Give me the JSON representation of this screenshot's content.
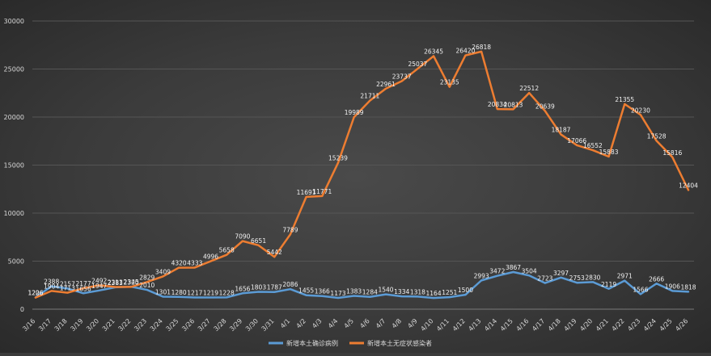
{
  "chart_data": {
    "type": "line",
    "title": "",
    "xlabel": "",
    "ylabel": "",
    "ylim": [
      0,
      30000
    ],
    "yticks": [
      0,
      5000,
      10000,
      15000,
      20000,
      25000,
      30000
    ],
    "grid": true,
    "legend_position": "bottom",
    "categories": [
      "3/16",
      "3/17",
      "3/18",
      "3/19",
      "3/20",
      "3/21",
      "3/22",
      "3/23",
      "3/24",
      "3/25",
      "3/26",
      "3/27",
      "3/28",
      "3/29",
      "3/30",
      "3/31",
      "4/1",
      "4/2",
      "4/3",
      "4/4",
      "4/5",
      "4/6",
      "4/7",
      "4/8",
      "4/9",
      "4/10",
      "4/11",
      "4/12",
      "4/13",
      "4/14",
      "4/15",
      "4/16",
      "4/17",
      "4/18",
      "4/19",
      "4/20",
      "4/21",
      "4/22",
      "4/23",
      "4/24",
      "4/25",
      "4/26"
    ],
    "series": [
      {
        "name": "新增本土确诊病例",
        "color": "#5b9bd5",
        "values": [
          1226,
          2388,
          2157,
          1656,
          1947,
          2281,
          2345,
          2010,
          1301,
          1280,
          1217,
          1219,
          1228,
          1656,
          1803,
          1787,
          2086,
          1455,
          1366,
          1173,
          1383,
          1284,
          1540,
          1334,
          1318,
          1164,
          1251,
          1500,
          2993,
          3472,
          3867,
          3504,
          2723,
          3297,
          2753,
          2830,
          2119,
          2971,
          1566,
          2666,
          1906,
          1818
        ]
      },
      {
        "name": "新增本土无症状感染者",
        "color": "#ed7d31",
        "values": [
          1206,
          1904,
          1713,
          2177,
          2492,
          2313,
          2320,
          2829,
          3409,
          4320,
          4333,
          4996,
          5658,
          7090,
          6651,
          5442,
          7789,
          11691,
          11771,
          15239,
          19989,
          21711,
          22961,
          23737,
          25037,
          26345,
          23135,
          26420,
          26818,
          20834,
          20813,
          22512,
          20639,
          18187,
          17066,
          16552,
          15883,
          21355,
          20230,
          17528,
          15816,
          12404
        ]
      }
    ]
  }
}
